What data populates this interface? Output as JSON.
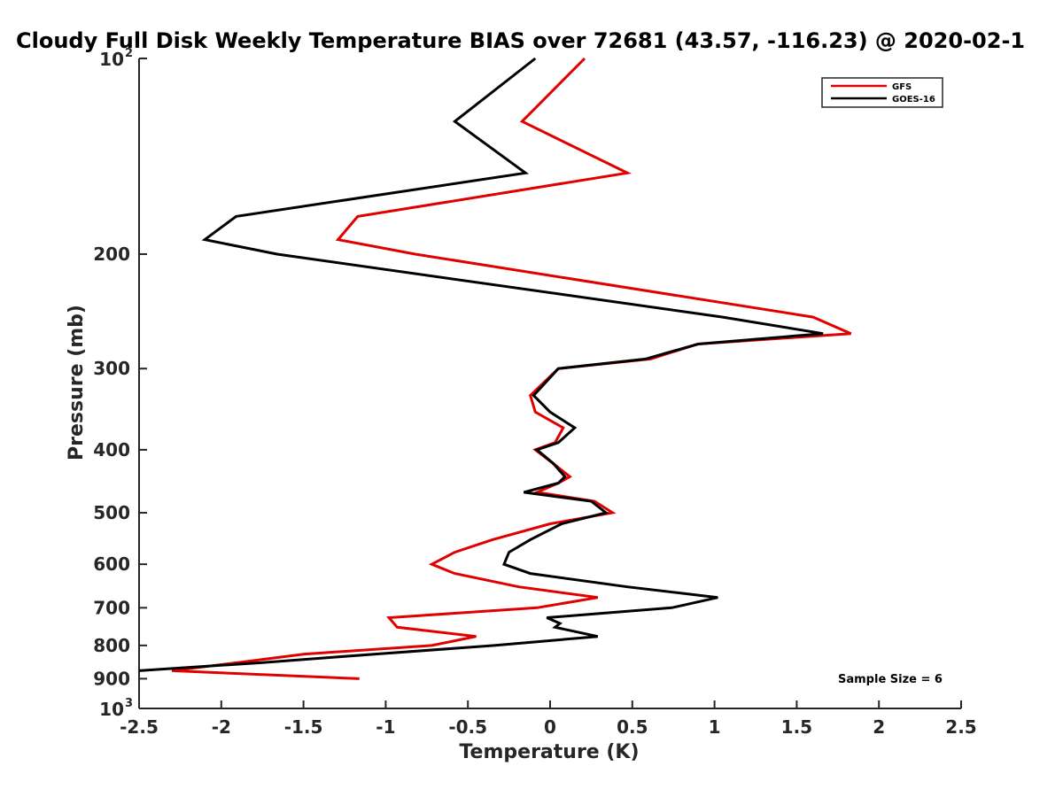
{
  "chart_data": {
    "type": "line",
    "title": "Cloudy Full Disk Weekly Temperature BIAS over 72681 (43.57, -116.23) @ 2020-02-1",
    "xlabel": "Temperature (K)",
    "ylabel": "Pressure (mb)",
    "xlim": [
      -2.5,
      2.5
    ],
    "ylim": [
      100,
      1000
    ],
    "y_scale": "log",
    "y_reversed": true,
    "x_ticks": [
      "-2.5",
      "-2",
      "-1.5",
      "-1",
      "-0.5",
      "0",
      "0.5",
      "1",
      "1.5",
      "2",
      "2.5"
    ],
    "x_tick_values": [
      -2.5,
      -2,
      -1.5,
      -1,
      -0.5,
      0,
      0.5,
      1,
      1.5,
      2,
      2.5
    ],
    "y_ticks": [
      {
        "value": 100,
        "base": "10",
        "exp": "2"
      },
      {
        "value": 200,
        "label": "200"
      },
      {
        "value": 300,
        "label": "300"
      },
      {
        "value": 400,
        "label": "400"
      },
      {
        "value": 500,
        "label": "500"
      },
      {
        "value": 600,
        "label": "600"
      },
      {
        "value": 700,
        "label": "700"
      },
      {
        "value": 800,
        "label": "800"
      },
      {
        "value": 900,
        "label": "900"
      },
      {
        "value": 1000,
        "base": "10",
        "exp": "3"
      }
    ],
    "grid": false,
    "legend_position": "top-right",
    "series": [
      {
        "name": "GFS",
        "color": "#e00000",
        "points": [
          [
            0.21,
            100
          ],
          [
            -0.17,
            125
          ],
          [
            0.47,
            150
          ],
          [
            -1.17,
            175
          ],
          [
            -1.29,
            190
          ],
          [
            -0.82,
            200
          ],
          [
            1.6,
            250
          ],
          [
            1.83,
            265
          ],
          [
            0.9,
            275
          ],
          [
            0.61,
            290
          ],
          [
            0.05,
            300
          ],
          [
            -0.12,
            330
          ],
          [
            -0.09,
            350
          ],
          [
            0.08,
            370
          ],
          [
            0.03,
            390
          ],
          [
            -0.09,
            400
          ],
          [
            0.02,
            420
          ],
          [
            0.12,
            440
          ],
          [
            0.05,
            450
          ],
          [
            -0.08,
            465
          ],
          [
            0.27,
            480
          ],
          [
            0.38,
            500
          ],
          [
            0.0,
            520
          ],
          [
            -0.35,
            550
          ],
          [
            -0.58,
            575
          ],
          [
            -0.72,
            600
          ],
          [
            -0.58,
            620
          ],
          [
            -0.19,
            650
          ],
          [
            0.29,
            675
          ],
          [
            -0.08,
            700
          ],
          [
            -0.98,
            725
          ],
          [
            -0.93,
            750
          ],
          [
            -0.45,
            775
          ],
          [
            -0.72,
            800
          ],
          [
            -1.5,
            825
          ],
          [
            -1.9,
            850
          ],
          [
            -2.3,
            875
          ],
          [
            -1.16,
            900
          ]
        ]
      },
      {
        "name": "GOES-16",
        "color": "#000000",
        "points": [
          [
            -0.09,
            100
          ],
          [
            -0.58,
            125
          ],
          [
            -0.15,
            150
          ],
          [
            -1.91,
            175
          ],
          [
            -2.1,
            190
          ],
          [
            -1.66,
            200
          ],
          [
            1.05,
            250
          ],
          [
            1.66,
            265
          ],
          [
            0.9,
            275
          ],
          [
            0.58,
            290
          ],
          [
            0.05,
            300
          ],
          [
            -0.1,
            330
          ],
          [
            0.0,
            350
          ],
          [
            0.15,
            370
          ],
          [
            0.05,
            390
          ],
          [
            -0.08,
            400
          ],
          [
            0.02,
            420
          ],
          [
            0.09,
            440
          ],
          [
            0.05,
            450
          ],
          [
            -0.16,
            465
          ],
          [
            0.25,
            480
          ],
          [
            0.34,
            500
          ],
          [
            0.07,
            520
          ],
          [
            -0.12,
            550
          ],
          [
            -0.25,
            575
          ],
          [
            -0.28,
            600
          ],
          [
            -0.12,
            620
          ],
          [
            0.47,
            650
          ],
          [
            1.02,
            675
          ],
          [
            0.74,
            700
          ],
          [
            -0.02,
            725
          ],
          [
            0.06,
            740
          ],
          [
            0.03,
            750
          ],
          [
            0.29,
            775
          ],
          [
            -0.34,
            800
          ],
          [
            -1.07,
            825
          ],
          [
            -1.75,
            850
          ],
          [
            -2.5,
            875
          ]
        ]
      }
    ],
    "annotation": "Sample Size = 6"
  }
}
